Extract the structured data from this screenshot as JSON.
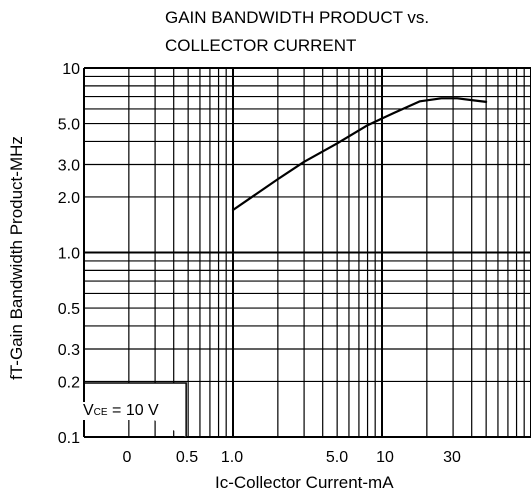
{
  "chart_data": {
    "type": "line",
    "title_line1": "GAIN BANDWIDTH PRODUCT vs.",
    "title_line2": "COLLECTOR CURRENT",
    "xlabel": "Ic-Collector Current-mA",
    "ylabel": "fT-Gain Bandwidth Product-MHz",
    "x_scale": "log",
    "y_scale": "log",
    "grid": true,
    "xticks": [
      "0",
      "0.5",
      "1.0",
      "5.0",
      "10",
      "30"
    ],
    "yticks": [
      "10",
      "5.0",
      "3.0",
      "2.0",
      "1.0",
      "0.5",
      "0.3",
      "0.2",
      "0.1"
    ],
    "annotation": {
      "prefix": "V",
      "sub": "CE",
      "suffix": " = 10 V"
    },
    "series": [
      {
        "x": [
          1.0,
          2.0,
          3.0,
          5.0,
          8.0,
          12.0,
          18.0,
          25.0,
          32.0,
          40.0,
          50.0
        ],
        "y": [
          1.7,
          2.5,
          3.1,
          3.9,
          4.9,
          5.7,
          6.6,
          6.85,
          6.85,
          6.7,
          6.55
        ]
      }
    ]
  }
}
